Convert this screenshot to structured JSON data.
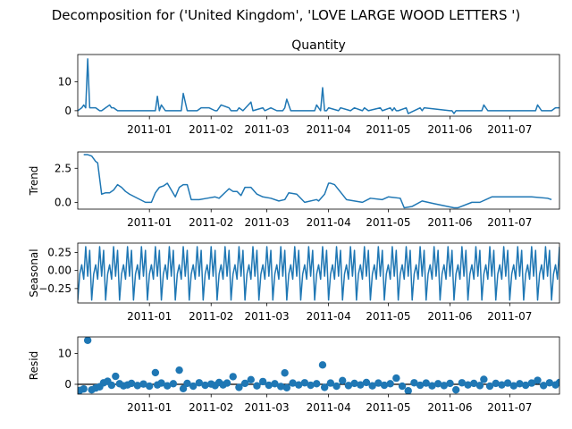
{
  "figure": {
    "suptitle": "Decomposition for ('United Kingdom', 'LOVE LARGE WOOD LETTERS ')",
    "line_color": "#1f77b4",
    "zero_line_color": "#000000"
  },
  "chart_data": [
    {
      "type": "line",
      "title": "Quantity",
      "ylabel": "",
      "xlim": [
        "2010-11-26",
        "2011-07-26"
      ],
      "ylim": [
        -1.9,
        19.5
      ],
      "yticks": [
        0,
        10
      ],
      "xticks": [
        "2011-01-01",
        "2011-02-01",
        "2011-03-01",
        "2011-04-01",
        "2011-05-01",
        "2011-06-01",
        "2011-07-01"
      ],
      "xticklabels": [
        "2011-01",
        "2011-02",
        "2011-03",
        "2011-04",
        "2011-05",
        "2011-06",
        "2011-07"
      ],
      "x": [
        "2010-11-26",
        "2010-11-28",
        "2010-11-29",
        "2010-11-30",
        "2010-12-01",
        "2010-12-02",
        "2010-12-05",
        "2010-12-07",
        "2010-12-08",
        "2010-12-10",
        "2010-12-12",
        "2010-12-13",
        "2010-12-14",
        "2010-12-16",
        "2011-01-04",
        "2011-01-05",
        "2011-01-06",
        "2011-01-07",
        "2011-01-09",
        "2011-01-11",
        "2011-01-16",
        "2011-01-17",
        "2011-01-18",
        "2011-01-20",
        "2011-01-25",
        "2011-01-27",
        "2011-01-31",
        "2011-02-03",
        "2011-02-04",
        "2011-02-06",
        "2011-02-10",
        "2011-02-11",
        "2011-02-14",
        "2011-02-15",
        "2011-02-17",
        "2011-02-21",
        "2011-02-22",
        "2011-02-27",
        "2011-02-28",
        "2011-03-03",
        "2011-03-06",
        "2011-03-09",
        "2011-03-10",
        "2011-03-11",
        "2011-03-13",
        "2011-03-25",
        "2011-03-26",
        "2011-03-28",
        "2011-03-29",
        "2011-03-30",
        "2011-03-31",
        "2011-04-01",
        "2011-04-06",
        "2011-04-07",
        "2011-04-12",
        "2011-04-14",
        "2011-04-18",
        "2011-04-19",
        "2011-04-21",
        "2011-04-27",
        "2011-04-28",
        "2011-05-02",
        "2011-05-03",
        "2011-05-04",
        "2011-05-05",
        "2011-05-06",
        "2011-05-10",
        "2011-05-11",
        "2011-05-17",
        "2011-05-18",
        "2011-05-19",
        "2011-06-01",
        "2011-06-02",
        "2011-06-03",
        "2011-06-04",
        "2011-06-17",
        "2011-06-18",
        "2011-06-20",
        "2011-07-14",
        "2011-07-15",
        "2011-07-17",
        "2011-07-22",
        "2011-07-24",
        "2011-07-26"
      ],
      "values": [
        0,
        1,
        2,
        1,
        18,
        1,
        1,
        0,
        0,
        1,
        2,
        1,
        1,
        0,
        0,
        5,
        0,
        2,
        0,
        0,
        0,
        0,
        6,
        0,
        0,
        1,
        1,
        0,
        0,
        2,
        1,
        0,
        0,
        1,
        0,
        3,
        0,
        1,
        0,
        1,
        0,
        0,
        1,
        4,
        0,
        0,
        2,
        0,
        8,
        0,
        0,
        1,
        0,
        1,
        0,
        1,
        0,
        1,
        0,
        1,
        0,
        1,
        0,
        1,
        0,
        0,
        1,
        -1,
        1,
        0,
        1,
        0,
        0,
        -1,
        0,
        0,
        2,
        0,
        0,
        2,
        0,
        0,
        1,
        1
      ]
    },
    {
      "type": "line",
      "title": "",
      "ylabel": "Trend",
      "xlim": [
        "2010-11-26",
        "2011-07-26"
      ],
      "ylim": [
        -0.5,
        3.7
      ],
      "yticks": [
        0,
        2.5
      ],
      "yticklabels": [
        "0.0",
        "2.5"
      ],
      "xticks": [
        "2011-01-01",
        "2011-02-01",
        "2011-03-01",
        "2011-04-01",
        "2011-05-01",
        "2011-06-01",
        "2011-07-01"
      ],
      "xticklabels": [
        "2011-01",
        "2011-02",
        "2011-03",
        "2011-04",
        "2011-05",
        "2011-06",
        "2011-07"
      ],
      "x": [
        "2010-11-29",
        "2010-12-01",
        "2010-12-03",
        "2010-12-05",
        "2010-12-06",
        "2010-12-08",
        "2010-12-10",
        "2010-12-12",
        "2010-12-14",
        "2010-12-16",
        "2010-12-18",
        "2010-12-20",
        "2010-12-22",
        "2010-12-30",
        "2011-01-02",
        "2011-01-04",
        "2011-01-06",
        "2011-01-08",
        "2011-01-10",
        "2011-01-12",
        "2011-01-14",
        "2011-01-16",
        "2011-01-18",
        "2011-01-20",
        "2011-01-22",
        "2011-01-26",
        "2011-01-30",
        "2011-02-03",
        "2011-02-05",
        "2011-02-10",
        "2011-02-12",
        "2011-02-14",
        "2011-02-16",
        "2011-02-18",
        "2011-02-21",
        "2011-02-24",
        "2011-02-27",
        "2011-03-03",
        "2011-03-07",
        "2011-03-10",
        "2011-03-12",
        "2011-03-16",
        "2011-03-20",
        "2011-03-26",
        "2011-03-27",
        "2011-03-30",
        "2011-04-01",
        "2011-04-02",
        "2011-04-04",
        "2011-04-10",
        "2011-04-14",
        "2011-04-18",
        "2011-04-22",
        "2011-04-28",
        "2011-05-01",
        "2011-05-07",
        "2011-05-09",
        "2011-05-13",
        "2011-05-18",
        "2011-05-24",
        "2011-06-03",
        "2011-06-05",
        "2011-06-12",
        "2011-06-16",
        "2011-06-22",
        "2011-07-12",
        "2011-07-20",
        "2011-07-22"
      ],
      "values": [
        3.5,
        3.5,
        3.4,
        3.0,
        2.9,
        0.6,
        0.7,
        0.7,
        0.9,
        1.3,
        1.1,
        0.8,
        0.6,
        0.0,
        0.0,
        0.7,
        1.1,
        1.2,
        1.4,
        0.9,
        0.4,
        1.1,
        1.3,
        1.3,
        0.2,
        0.2,
        0.3,
        0.4,
        0.3,
        1.0,
        0.8,
        0.8,
        0.5,
        1.1,
        1.1,
        0.6,
        0.4,
        0.3,
        0.1,
        0.2,
        0.7,
        0.6,
        0.0,
        0.2,
        0.1,
        0.6,
        1.4,
        1.4,
        1.3,
        0.2,
        0.1,
        0.0,
        0.3,
        0.2,
        0.4,
        0.3,
        -0.4,
        -0.3,
        0.1,
        -0.1,
        -0.4,
        -0.4,
        0.0,
        0.0,
        0.4,
        0.4,
        0.3,
        0.2
      ]
    },
    {
      "type": "line",
      "title": "",
      "ylabel": "Seasonal",
      "xlim": [
        "2010-11-26",
        "2011-07-26"
      ],
      "ylim": [
        -0.45,
        0.38
      ],
      "yticks": [
        0.25,
        0.0,
        -0.25
      ],
      "yticklabels": [
        "0.25",
        "0.00",
        "−0.25"
      ],
      "xticks": [
        "2011-01-01",
        "2011-02-01",
        "2011-03-01",
        "2011-04-01",
        "2011-05-01",
        "2011-06-01",
        "2011-07-01"
      ],
      "xticklabels": [
        "2011-01",
        "2011-02",
        "2011-03",
        "2011-04",
        "2011-05",
        "2011-06",
        "2011-07"
      ],
      "period_days": 7,
      "pattern": [
        -0.41,
        -0.05,
        0.08,
        -0.12,
        0.33,
        -0.08,
        0.28
      ]
    },
    {
      "type": "scatter",
      "title": "",
      "ylabel": "Resid",
      "xlim": [
        "2010-11-26",
        "2011-07-26"
      ],
      "ylim": [
        -3.2,
        15.4
      ],
      "yticks": [
        0,
        10
      ],
      "xticks": [
        "2011-01-01",
        "2011-02-01",
        "2011-03-01",
        "2011-04-01",
        "2011-05-01",
        "2011-06-01",
        "2011-07-01"
      ],
      "xticklabels": [
        "2011-01",
        "2011-02",
        "2011-03",
        "2011-04",
        "2011-05",
        "2011-06",
        "2011-07"
      ],
      "baseline": 0,
      "x": [
        "2010-11-27",
        "2010-11-29",
        "2010-12-01",
        "2010-12-03",
        "2010-12-05",
        "2010-12-07",
        "2010-12-09",
        "2010-12-11",
        "2010-12-13",
        "2010-12-15",
        "2010-12-17",
        "2010-12-19",
        "2010-12-21",
        "2010-12-23",
        "2010-12-26",
        "2010-12-29",
        "2011-01-01",
        "2011-01-04",
        "2011-01-05",
        "2011-01-07",
        "2011-01-10",
        "2011-01-13",
        "2011-01-16",
        "2011-01-18",
        "2011-01-20",
        "2011-01-23",
        "2011-01-26",
        "2011-01-29",
        "2011-02-01",
        "2011-02-03",
        "2011-02-05",
        "2011-02-07",
        "2011-02-09",
        "2011-02-12",
        "2011-02-15",
        "2011-02-18",
        "2011-02-21",
        "2011-02-24",
        "2011-02-27",
        "2011-03-02",
        "2011-03-05",
        "2011-03-08",
        "2011-03-10",
        "2011-03-11",
        "2011-03-14",
        "2011-03-17",
        "2011-03-20",
        "2011-03-23",
        "2011-03-26",
        "2011-03-29",
        "2011-03-30",
        "2011-04-02",
        "2011-04-05",
        "2011-04-08",
        "2011-04-11",
        "2011-04-14",
        "2011-04-17",
        "2011-04-20",
        "2011-04-23",
        "2011-04-26",
        "2011-04-29",
        "2011-05-02",
        "2011-05-05",
        "2011-05-08",
        "2011-05-11",
        "2011-05-14",
        "2011-05-17",
        "2011-05-20",
        "2011-05-23",
        "2011-05-26",
        "2011-05-29",
        "2011-06-01",
        "2011-06-04",
        "2011-06-07",
        "2011-06-10",
        "2011-06-13",
        "2011-06-16",
        "2011-06-18",
        "2011-06-21",
        "2011-06-24",
        "2011-06-27",
        "2011-06-30",
        "2011-07-03",
        "2011-07-06",
        "2011-07-09",
        "2011-07-12",
        "2011-07-15",
        "2011-07-18",
        "2011-07-21",
        "2011-07-24",
        "2011-07-26"
      ],
      "values": [
        -2.0,
        -1.5,
        14.3,
        -1.8,
        -1.2,
        -0.8,
        0.5,
        1.0,
        -0.3,
        2.6,
        0.2,
        -0.5,
        -0.2,
        0.3,
        -0.4,
        0.1,
        -0.6,
        3.8,
        -0.2,
        0.4,
        -0.5,
        0.2,
        4.6,
        -1.4,
        0.3,
        -0.6,
        0.5,
        -0.3,
        0.1,
        -0.4,
        0.6,
        -0.2,
        0.4,
        2.5,
        -1.0,
        0.3,
        1.5,
        -0.5,
        0.9,
        -0.3,
        0.2,
        -0.7,
        3.7,
        -1.1,
        0.4,
        -0.2,
        0.5,
        -0.3,
        0.2,
        6.3,
        -1.0,
        0.4,
        -0.6,
        1.2,
        -0.4,
        0.3,
        -0.2,
        0.6,
        -0.5,
        0.4,
        -0.3,
        0.2,
        2.0,
        -0.6,
        -2.1,
        0.5,
        -0.3,
        0.4,
        -0.5,
        0.2,
        -0.4,
        0.3,
        -1.8,
        0.5,
        -0.2,
        0.3,
        -0.4,
        1.6,
        -0.6,
        0.3,
        -0.2,
        0.4,
        -0.5,
        0.2,
        -0.3,
        0.4,
        1.3,
        -0.4,
        0.5,
        -0.2,
        0.6
      ]
    }
  ]
}
